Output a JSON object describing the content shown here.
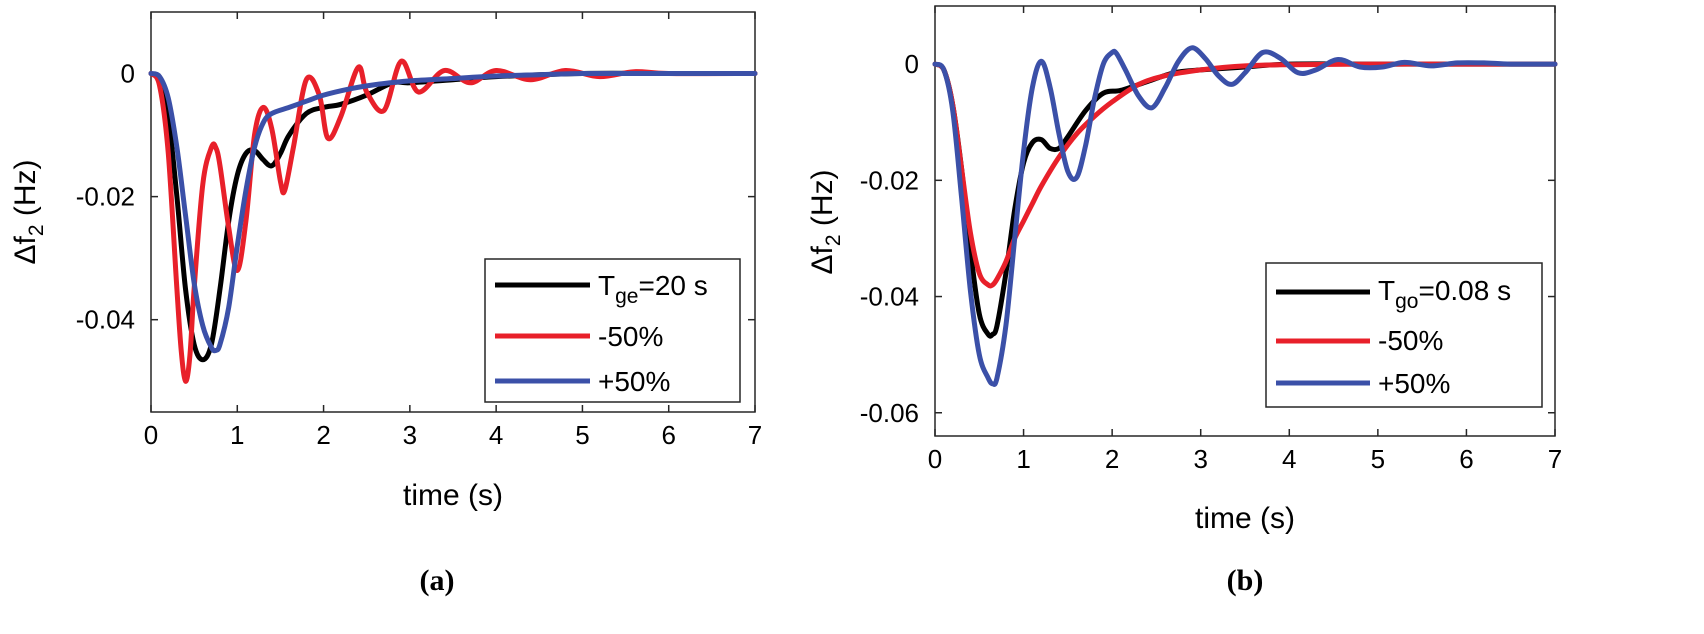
{
  "chart_data": [
    {
      "type": "line",
      "caption": "(a)",
      "xlabel": "time (s)",
      "ylabel": {
        "main": "Δf",
        "sub": "2",
        "unit": " (Hz)"
      },
      "xlim": [
        0,
        7
      ],
      "ylim": [
        -0.055,
        0.01
      ],
      "xticks": [
        0,
        1,
        2,
        3,
        4,
        5,
        6,
        7
      ],
      "yticks": [
        0,
        -0.02,
        -0.04
      ],
      "ytick_labels": [
        "0",
        "-0.02",
        "-0.04"
      ],
      "grid": false,
      "legend": "bottom-right",
      "series": [
        {
          "name": "T_ge=20 s",
          "legend_main": "T",
          "legend_sub": "ge",
          "legend_rest": "=20 s",
          "color": "#000000",
          "x": [
            0,
            0.1,
            0.2,
            0.3,
            0.4,
            0.5,
            0.6,
            0.7,
            0.8,
            0.9,
            1.0,
            1.1,
            1.2,
            1.3,
            1.4,
            1.5,
            1.6,
            1.8,
            2.0,
            2.2,
            2.5,
            2.8,
            3.0,
            3.5,
            4.0,
            5.0,
            6.0,
            7.0
          ],
          "y": [
            0,
            -0.001,
            -0.007,
            -0.02,
            -0.035,
            -0.044,
            -0.0465,
            -0.044,
            -0.035,
            -0.024,
            -0.0165,
            -0.013,
            -0.0125,
            -0.014,
            -0.015,
            -0.013,
            -0.01,
            -0.0065,
            -0.0055,
            -0.005,
            -0.0035,
            -0.0015,
            -0.0015,
            -0.001,
            -0.0005,
            0,
            0,
            0
          ]
        },
        {
          "name": "-50%",
          "color": "#e8202a",
          "x": [
            0,
            0.1,
            0.2,
            0.3,
            0.35,
            0.4,
            0.45,
            0.5,
            0.6,
            0.7,
            0.75,
            0.8,
            0.9,
            1.0,
            1.1,
            1.2,
            1.3,
            1.4,
            1.5,
            1.55,
            1.65,
            1.8,
            1.95,
            2.05,
            2.2,
            2.4,
            2.5,
            2.7,
            2.9,
            3.1,
            3.4,
            3.7,
            4.0,
            4.4,
            4.8,
            5.2,
            5.6,
            6.0,
            7.0
          ],
          "y": [
            0,
            -0.002,
            -0.013,
            -0.035,
            -0.045,
            -0.05,
            -0.046,
            -0.035,
            -0.018,
            -0.012,
            -0.012,
            -0.015,
            -0.025,
            -0.032,
            -0.024,
            -0.01,
            -0.0055,
            -0.009,
            -0.0175,
            -0.019,
            -0.012,
            -0.001,
            -0.0035,
            -0.0105,
            -0.007,
            0.001,
            -0.003,
            -0.006,
            0.002,
            -0.003,
            0.0005,
            -0.0015,
            0.0005,
            -0.001,
            0.0005,
            -0.0005,
            0.0003,
            0,
            0
          ]
        },
        {
          "name": "+50%",
          "color": "#3b50a8",
          "x": [
            0,
            0.1,
            0.2,
            0.3,
            0.4,
            0.5,
            0.6,
            0.7,
            0.75,
            0.8,
            0.9,
            1.0,
            1.1,
            1.2,
            1.3,
            1.4,
            1.6,
            1.8,
            2.0,
            2.3,
            2.6,
            3.0,
            3.5,
            4.0,
            4.5,
            5.0,
            6.0,
            7.0
          ],
          "y": [
            0,
            -0.0005,
            -0.004,
            -0.012,
            -0.023,
            -0.034,
            -0.041,
            -0.0445,
            -0.045,
            -0.044,
            -0.038,
            -0.028,
            -0.019,
            -0.012,
            -0.008,
            -0.0065,
            -0.0055,
            -0.0045,
            -0.0035,
            -0.0025,
            -0.0018,
            -0.0012,
            -0.0008,
            -0.0004,
            -0.0002,
            0,
            0,
            0
          ]
        }
      ]
    },
    {
      "type": "line",
      "caption": "(b)",
      "xlabel": "time (s)",
      "ylabel": {
        "main": "Δf",
        "sub": "2",
        "unit": " (Hz)"
      },
      "xlim": [
        0,
        7
      ],
      "ylim": [
        -0.064,
        0.01
      ],
      "xticks": [
        0,
        1,
        2,
        3,
        4,
        5,
        6,
        7
      ],
      "yticks": [
        0,
        -0.02,
        -0.04,
        -0.06
      ],
      "ytick_labels": [
        "0",
        "-0.02",
        "-0.04",
        "-0.06"
      ],
      "grid": false,
      "legend": "bottom-right",
      "series": [
        {
          "name": "T_go=0.08 s",
          "legend_main": "T",
          "legend_sub": "go",
          "legend_rest": "=0.08 s",
          "color": "#000000",
          "x": [
            0,
            0.1,
            0.2,
            0.3,
            0.4,
            0.5,
            0.6,
            0.65,
            0.7,
            0.8,
            0.9,
            1.0,
            1.1,
            1.2,
            1.3,
            1.4,
            1.5,
            1.7,
            1.9,
            2.1,
            2.4,
            2.7,
            3.0,
            3.5,
            4.0,
            5.0,
            6.0,
            7.0
          ],
          "y": [
            0,
            -0.001,
            -0.007,
            -0.018,
            -0.032,
            -0.043,
            -0.0465,
            -0.0465,
            -0.045,
            -0.036,
            -0.025,
            -0.017,
            -0.0135,
            -0.013,
            -0.0145,
            -0.0145,
            -0.0125,
            -0.008,
            -0.005,
            -0.0045,
            -0.003,
            -0.0015,
            -0.001,
            -0.0005,
            0,
            0,
            0,
            0
          ]
        },
        {
          "name": "-50%",
          "color": "#e8202a",
          "x": [
            0,
            0.1,
            0.2,
            0.3,
            0.4,
            0.5,
            0.6,
            0.65,
            0.7,
            0.8,
            0.9,
            1.0,
            1.1,
            1.2,
            1.4,
            1.6,
            1.8,
            2.0,
            2.3,
            2.6,
            3.0,
            3.5,
            4.0,
            5.0,
            6.0,
            7.0
          ],
          "y": [
            0,
            -0.001,
            -0.007,
            -0.018,
            -0.029,
            -0.036,
            -0.038,
            -0.038,
            -0.037,
            -0.034,
            -0.03,
            -0.027,
            -0.024,
            -0.021,
            -0.016,
            -0.012,
            -0.009,
            -0.0065,
            -0.0035,
            -0.002,
            -0.001,
            -0.0003,
            -0.0001,
            0,
            0,
            0
          ]
        },
        {
          "name": "+50%",
          "color": "#3b50a8",
          "x": [
            0,
            0.1,
            0.2,
            0.3,
            0.4,
            0.5,
            0.6,
            0.65,
            0.7,
            0.8,
            0.9,
            1.0,
            1.1,
            1.2,
            1.3,
            1.4,
            1.5,
            1.6,
            1.7,
            1.8,
            1.9,
            2.0,
            2.05,
            2.15,
            2.3,
            2.45,
            2.6,
            2.75,
            2.9,
            3.05,
            3.2,
            3.35,
            3.5,
            3.7,
            3.9,
            4.1,
            4.3,
            4.55,
            4.8,
            5.05,
            5.3,
            5.6,
            5.9,
            6.2,
            6.5,
            7.0
          ],
          "y": [
            0,
            -0.001,
            -0.008,
            -0.023,
            -0.039,
            -0.05,
            -0.054,
            -0.055,
            -0.054,
            -0.045,
            -0.03,
            -0.015,
            -0.004,
            0.0005,
            -0.004,
            -0.012,
            -0.0185,
            -0.0195,
            -0.014,
            -0.006,
            0,
            0.002,
            0.0018,
            -0.001,
            -0.0055,
            -0.0075,
            -0.004,
            0.0005,
            0.0028,
            0.001,
            -0.002,
            -0.0035,
            -0.0015,
            0.002,
            0.001,
            -0.0015,
            -0.001,
            0.0008,
            -0.0005,
            -0.0005,
            0.0003,
            -0.0003,
            0.0002,
            0.0002,
            0,
            0
          ]
        }
      ]
    }
  ]
}
